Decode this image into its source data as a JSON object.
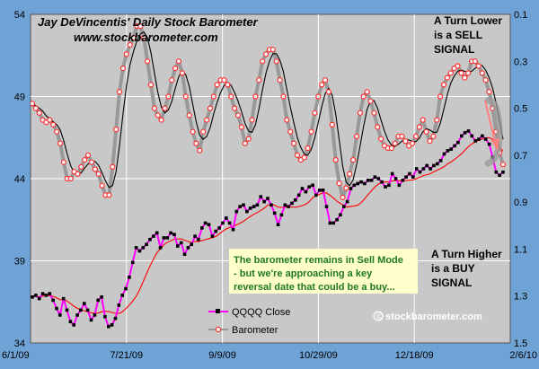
{
  "chart_data": {
    "type": "line",
    "title": "Jay DeVincentis' Daily Stock Barometer",
    "subtitle": "www.stockbarometer.com",
    "x_ticks": [
      "6/1/09",
      "7/21/09",
      "9/9/09",
      "10/29/09",
      "12/18/09",
      "2/6/10"
    ],
    "y_left_ticks": [
      "34",
      "39",
      "44",
      "49",
      "54"
    ],
    "y_left_range": [
      34,
      54
    ],
    "y_right_ticks": [
      "0.1",
      "0.3",
      "0.5",
      "0.7",
      "0.9",
      "1.1",
      "1.3",
      "1.5"
    ],
    "y_right_range": [
      0.1,
      1.5
    ],
    "y_right_inverted": true,
    "grid": true,
    "legend_position": "bottom-center",
    "series": [
      {
        "name": "QQQQ Close",
        "axis": "left",
        "color": "#ff00ff",
        "marker_color": "#000000",
        "values": [
          36.8,
          36.9,
          36.7,
          37.0,
          36.9,
          37.0,
          36.6,
          36.1,
          35.7,
          36.7,
          36.0,
          35.3,
          35.1,
          35.7,
          36.0,
          36.4,
          36.0,
          35.4,
          35.7,
          36.6,
          36.8,
          35.6,
          35.0,
          35.1,
          35.5,
          36.3,
          36.9,
          37.3,
          38.0,
          38.9,
          39.8,
          39.6,
          39.8,
          40.0,
          40.3,
          40.5,
          40.7,
          39.8,
          40.4,
          40.4,
          40.7,
          40.6,
          39.9,
          40.1,
          39.4,
          39.8,
          40.0,
          40.5,
          40.3,
          41.0,
          41.3,
          41.2,
          40.5,
          40.8,
          41.0,
          41.3,
          41.6,
          41.3,
          40.9,
          42.0,
          42.3,
          42.4,
          42.0,
          42.2,
          42.3,
          42.4,
          42.9,
          42.6,
          42.8,
          42.4,
          41.9,
          41.2,
          41.8,
          42.4,
          42.3,
          42.5,
          42.7,
          43.0,
          43.4,
          43.2,
          43.5,
          43.6,
          43.0,
          43.3,
          43.3,
          42.3,
          41.3,
          41.3,
          41.5,
          41.8,
          42.3,
          42.6,
          43.4,
          43.6,
          43.7,
          43.8,
          43.7,
          43.9,
          43.9,
          44.1,
          44.0,
          43.8,
          43.5,
          43.6,
          44.3,
          44.0,
          43.6,
          43.9,
          44.1,
          44.3,
          44.1,
          44.6,
          44.4,
          44.6,
          44.8,
          44.6,
          44.8,
          44.9,
          45.1,
          45.5,
          45.7,
          45.8,
          46.0,
          46.2,
          46.6,
          46.8,
          46.9,
          46.6,
          46.3,
          46.4,
          46.6,
          46.4,
          46.1,
          45.3,
          44.4,
          44.2,
          44.4
        ]
      },
      {
        "name": "Barometer",
        "axis": "right",
        "color": "#999999",
        "marker_color": "#ff3030",
        "values": [
          0.48,
          0.5,
          0.52,
          0.55,
          0.56,
          0.55,
          0.57,
          0.6,
          0.65,
          0.73,
          0.8,
          0.8,
          0.77,
          0.78,
          0.75,
          0.72,
          0.7,
          0.73,
          0.76,
          0.78,
          0.83,
          0.87,
          0.87,
          0.75,
          0.59,
          0.43,
          0.33,
          0.27,
          0.23,
          0.2,
          0.15,
          0.15,
          0.2,
          0.3,
          0.4,
          0.5,
          0.53,
          0.55,
          0.5,
          0.45,
          0.38,
          0.33,
          0.3,
          0.35,
          0.45,
          0.53,
          0.6,
          0.65,
          0.68,
          0.6,
          0.55,
          0.5,
          0.45,
          0.4,
          0.38,
          0.38,
          0.4,
          0.45,
          0.5,
          0.53,
          0.58,
          0.65,
          0.63,
          0.55,
          0.45,
          0.38,
          0.3,
          0.27,
          0.25,
          0.25,
          0.3,
          0.38,
          0.45,
          0.55,
          0.6,
          0.65,
          0.7,
          0.72,
          0.71,
          0.67,
          0.6,
          0.52,
          0.45,
          0.4,
          0.38,
          0.43,
          0.57,
          0.72,
          0.82,
          0.88,
          0.84,
          0.78,
          0.72,
          0.62,
          0.52,
          0.45,
          0.43,
          0.47,
          0.52,
          0.58,
          0.63,
          0.66,
          0.67,
          0.67,
          0.65,
          0.62,
          0.62,
          0.64,
          0.66,
          0.65,
          0.62,
          0.58,
          0.55,
          0.6,
          0.64,
          0.62,
          0.55,
          0.45,
          0.4,
          0.37,
          0.35,
          0.33,
          0.32,
          0.35,
          0.37,
          0.35,
          0.3,
          0.3,
          0.32,
          0.35,
          0.38,
          0.43,
          0.5,
          0.6,
          0.69,
          0.74
        ]
      }
    ],
    "annotations": [
      "A Turn Lower is a SELL SIGNAL",
      "A Turn Higher is a BUY SIGNAL",
      "The barometer remains in Sell Mode - but we're approaching a key reversal date that could be a buy...",
      "© stockbarometer.com"
    ]
  },
  "annotations_text": {
    "sell_l1": "A Turn Lower",
    "sell_l2": "is a SELL",
    "sell_l3": "SIGNAL",
    "buy_l1": "A Turn Higher",
    "buy_l2": "is a BUY",
    "buy_l3": "SIGNAL",
    "note_l1": "The barometer remains in Sell Mode",
    "note_l2": "- but we're approaching a key",
    "note_l3": "reversal date that could be a buy...",
    "copyright": "© stockbarometer.com"
  },
  "colors": {
    "background": "#6fa3d6",
    "plot": "#c8c8c8",
    "note_box": "#ffffcc",
    "note_text": "#1f7a1f",
    "ma_line": "#ff0000",
    "baro_ma_line": "#000000",
    "arrow": "#ff8080"
  }
}
